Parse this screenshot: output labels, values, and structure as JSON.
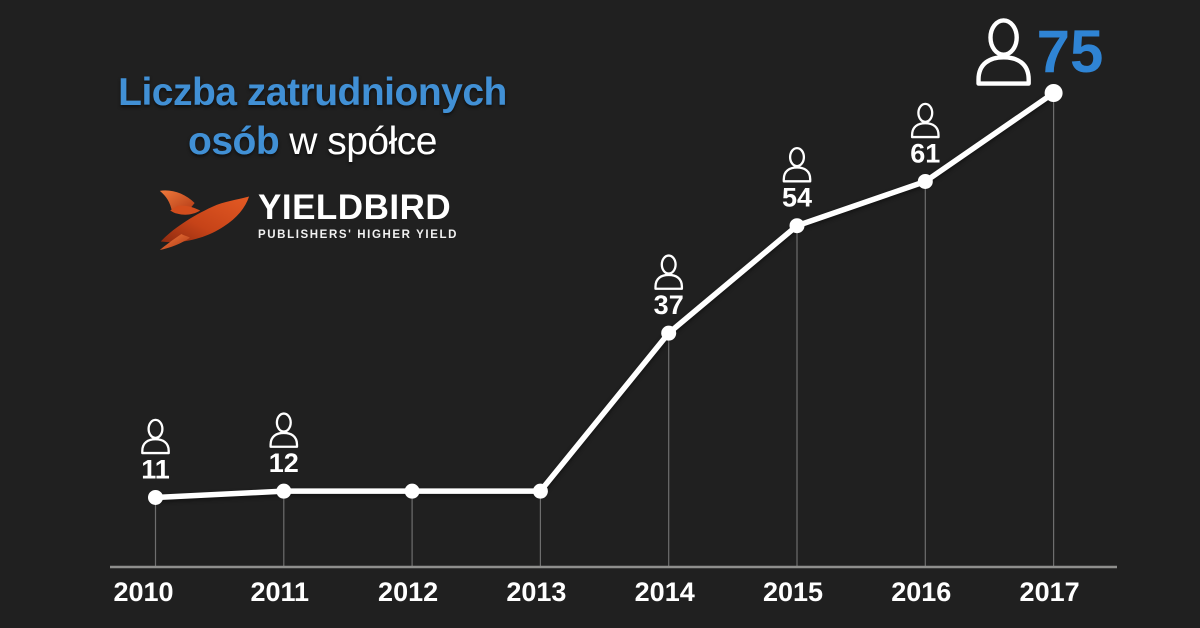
{
  "colors": {
    "background": "#202020",
    "accent_blue": "#4190d5",
    "accent_blue_strong": "#2f84d4",
    "line_white": "#ffffff",
    "axis_gray": "#8f8f8d",
    "dropline_gray": "#6e6e6e",
    "logo_orange": "#ef7038",
    "logo_dark_red": "#a63212"
  },
  "title": {
    "line1": "Liczba zatrudnionych",
    "line2_highlight": "osób",
    "line2_rest": "w spółce"
  },
  "logo": {
    "name": "YIELDBIRD",
    "tagline": "PUBLISHERS' HIGHER YIELD",
    "icon": "bird-icon"
  },
  "chart_data": {
    "type": "line",
    "title": "Liczba zatrudnionych osób w spółce YIELDBIRD",
    "xlabel": "",
    "ylabel": "",
    "categories": [
      "2010",
      "2011",
      "2012",
      "2013",
      "2014",
      "2015",
      "2016",
      "2017"
    ],
    "values": [
      11,
      12,
      12,
      12,
      37,
      54,
      61,
      75
    ],
    "point_labels": [
      "11",
      "12",
      "",
      "",
      "37",
      "54",
      "61",
      "75"
    ],
    "person_icon_indices": [
      0,
      1,
      4,
      5,
      6,
      7
    ],
    "highlight_index": 7,
    "highlight_value": "75",
    "ylim": [
      0,
      79
    ],
    "grid": false,
    "legend": false,
    "marker": "circle",
    "dropline_to_axis": true
  }
}
